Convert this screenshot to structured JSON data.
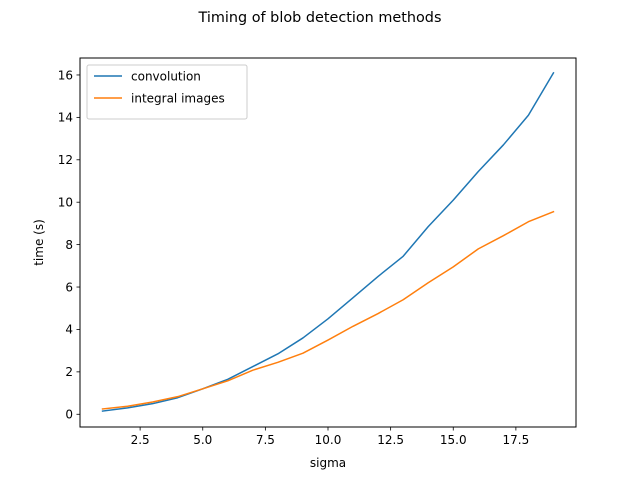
{
  "chart_data": {
    "type": "line",
    "title": "Timing of blob detection methods",
    "xlabel": "sigma",
    "ylabel": "time (s)",
    "xlim": [
      0.1,
      19.9
    ],
    "ylim": [
      -0.6,
      16.8
    ],
    "xticks": [
      2.5,
      5.0,
      7.5,
      10.0,
      12.5,
      15.0,
      17.5
    ],
    "xtick_labels": [
      "2.5",
      "5.0",
      "7.5",
      "10.0",
      "12.5",
      "15.0",
      "17.5"
    ],
    "yticks": [
      0,
      2,
      4,
      6,
      8,
      10,
      12,
      14,
      16
    ],
    "ytick_labels": [
      "0",
      "2",
      "4",
      "6",
      "8",
      "10",
      "12",
      "14",
      "16"
    ],
    "grid": false,
    "legend_position": "top-left",
    "x": [
      1,
      2,
      3,
      4,
      5,
      6,
      7,
      8,
      9,
      10,
      11,
      12,
      13,
      14,
      15,
      16,
      17,
      18,
      19
    ],
    "series": [
      {
        "name": "convolution",
        "color": "#1f77b4",
        "values": [
          0.15,
          0.3,
          0.5,
          0.78,
          1.2,
          1.65,
          2.25,
          2.85,
          3.6,
          4.5,
          5.5,
          6.5,
          7.45,
          8.85,
          10.1,
          11.45,
          12.7,
          14.1,
          16.1
        ]
      },
      {
        "name": "integral images",
        "color": "#ff7f0e",
        "values": [
          0.25,
          0.38,
          0.58,
          0.83,
          1.2,
          1.58,
          2.08,
          2.45,
          2.88,
          3.5,
          4.15,
          4.75,
          5.4,
          6.2,
          6.95,
          7.8,
          8.42,
          9.08,
          9.55
        ]
      }
    ]
  }
}
